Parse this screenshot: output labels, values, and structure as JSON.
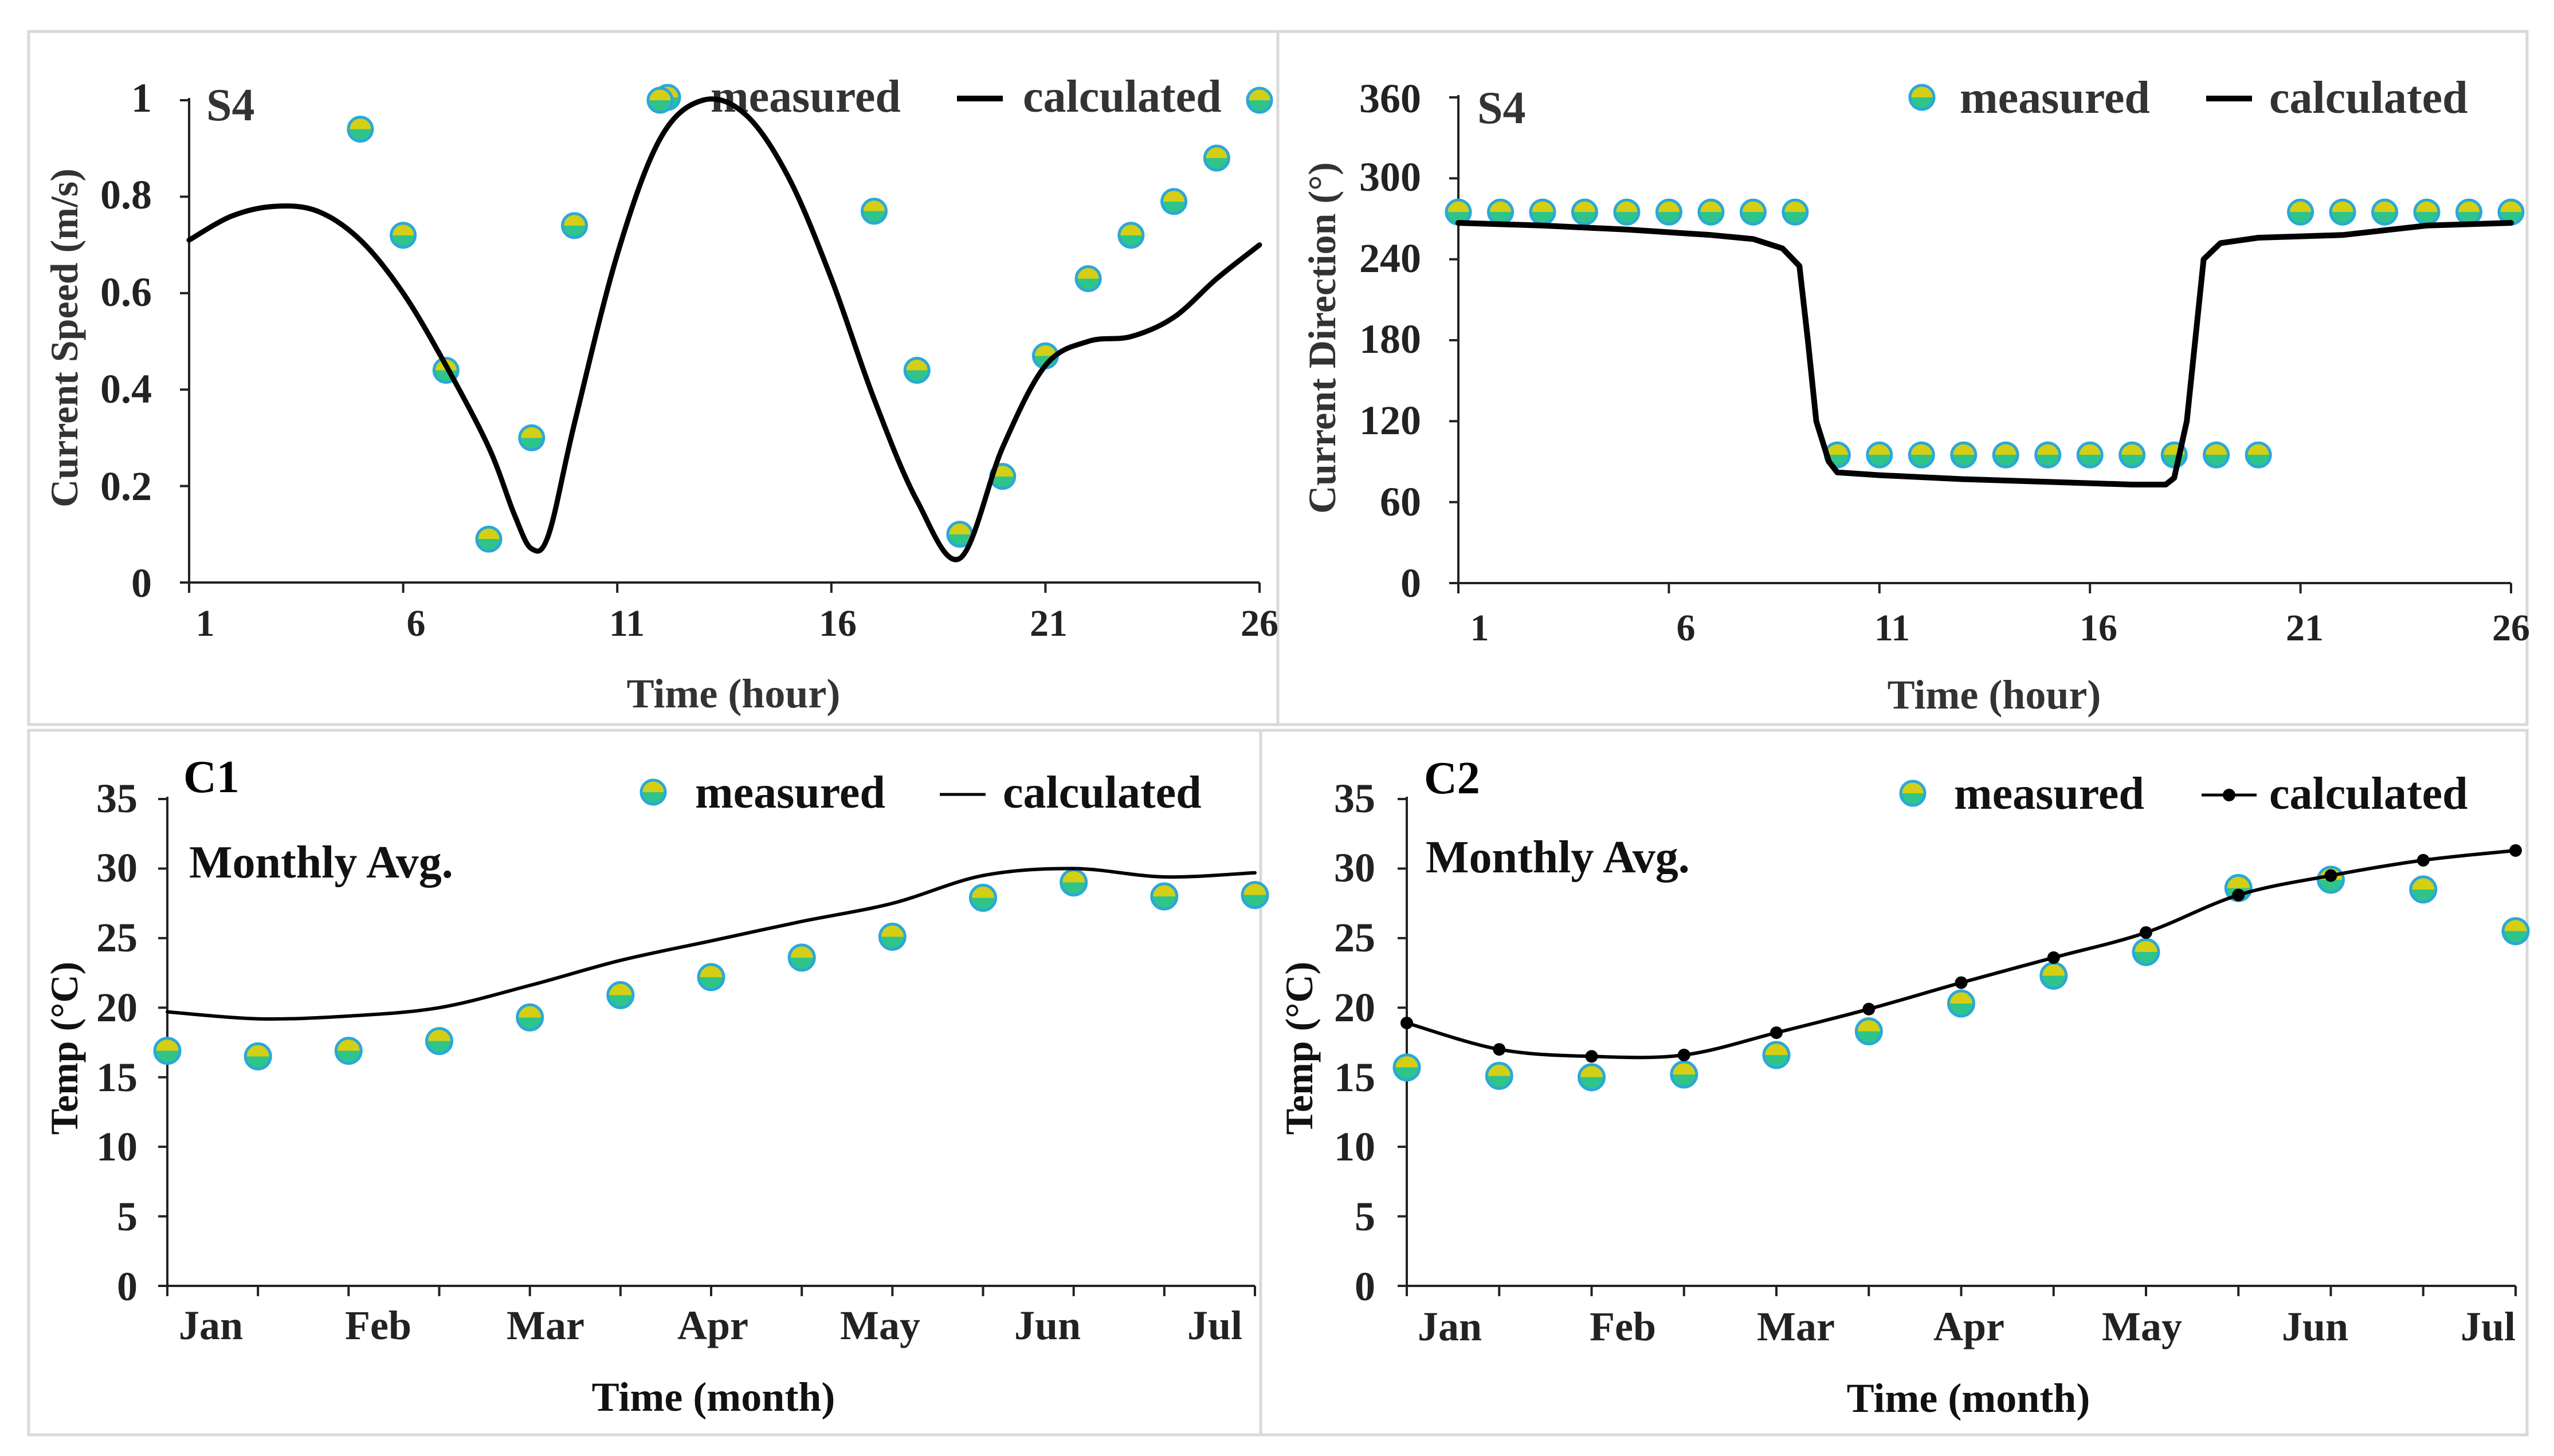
{
  "chart_data": [
    {
      "id": "p1",
      "type": "line",
      "title": "S4",
      "xlabel": "Time (hour)",
      "ylabel": "Current Speed (m/s)",
      "xlim": [
        1,
        26
      ],
      "ylim": [
        0,
        1
      ],
      "xticks": [
        "1",
        "6",
        "11",
        "16",
        "21",
        "26"
      ],
      "yticks": [
        "0",
        "0.2",
        "0.4",
        "0.6",
        "0.8",
        "1"
      ],
      "legend": {
        "measured": "measured",
        "calculated": "calculated"
      },
      "series": [
        {
          "name": "measured",
          "kind": "points",
          "x": [
            5,
            6,
            7,
            8,
            9,
            10,
            12,
            17,
            18,
            19,
            20,
            21,
            22,
            23,
            24,
            25,
            26
          ],
          "y": [
            0.94,
            0.72,
            0.44,
            0.09,
            0.3,
            0.74,
            1.0,
            0.77,
            0.44,
            0.1,
            0.22,
            0.47,
            0.63,
            0.72,
            0.79,
            0.88,
            1.0
          ]
        },
        {
          "name": "calculated",
          "kind": "smooth-line",
          "x": [
            1,
            2,
            3,
            4,
            5,
            6,
            7,
            8,
            8.6,
            9,
            9.4,
            10,
            11,
            12,
            13,
            14,
            15,
            16,
            17,
            18,
            19,
            20,
            21,
            22,
            23,
            24,
            25,
            26
          ],
          "y": [
            0.71,
            0.76,
            0.78,
            0.77,
            0.71,
            0.6,
            0.45,
            0.28,
            0.14,
            0.07,
            0.1,
            0.33,
            0.68,
            0.92,
            1.0,
            0.97,
            0.84,
            0.63,
            0.38,
            0.17,
            0.05,
            0.28,
            0.45,
            0.5,
            0.51,
            0.55,
            0.63,
            0.7
          ]
        }
      ]
    },
    {
      "id": "p2",
      "type": "line",
      "title": "S4",
      "xlabel": "Time (hour)",
      "ylabel": "Current Direction (°)",
      "xlim": [
        1,
        26
      ],
      "ylim": [
        0,
        360
      ],
      "xticks": [
        "1",
        "11",
        "16",
        "21",
        "26",
        "6"
      ],
      "xtick_values": [
        1,
        11,
        16,
        21,
        26,
        6
      ],
      "yticks": [
        "0",
        "60",
        "120",
        "180",
        "240",
        "300",
        "360"
      ],
      "legend": {
        "measured": "measured",
        "calculated": "calculated"
      },
      "series": [
        {
          "name": "measured",
          "kind": "points",
          "x": [
            1,
            2,
            3,
            4,
            5,
            6,
            7,
            8,
            9,
            10,
            11,
            12,
            13,
            14,
            15,
            16,
            17,
            18,
            19,
            20,
            21,
            22,
            23,
            24,
            25,
            26
          ],
          "y": [
            275,
            275,
            275,
            275,
            275,
            275,
            275,
            275,
            275,
            95,
            95,
            95,
            95,
            95,
            95,
            95,
            95,
            95,
            95,
            95,
            275,
            275,
            275,
            275,
            275,
            275
          ]
        },
        {
          "name": "calculated",
          "kind": "line",
          "x": [
            1,
            3,
            5,
            7,
            8,
            8.7,
            9.1,
            9.3,
            9.5,
            9.8,
            10,
            11,
            13,
            15,
            17,
            17.8,
            18,
            18.3,
            18.5,
            18.7,
            19.1,
            20,
            22,
            24,
            26
          ],
          "y": [
            267,
            265,
            262,
            258,
            255,
            248,
            235,
            180,
            120,
            90,
            82,
            80,
            77,
            75,
            73,
            73,
            78,
            120,
            180,
            240,
            252,
            256,
            258,
            265,
            267
          ]
        }
      ]
    },
    {
      "id": "p3",
      "type": "line",
      "title": "C1",
      "annotation": "Monthly Avg.",
      "xlabel": "Time (month)",
      "ylabel": "Temp (°C)",
      "categories": [
        "Jan",
        "Feb",
        "Mar",
        "Apr",
        "May",
        "Jun",
        "Jul"
      ],
      "xlim": [
        1,
        13
      ],
      "ylim": [
        0,
        35
      ],
      "yticks": [
        "0",
        "5",
        "10",
        "15",
        "20",
        "25",
        "30",
        "35"
      ],
      "legend": {
        "measured": "measured",
        "calculated": "calculated"
      },
      "series": [
        {
          "name": "measured",
          "kind": "points",
          "x": [
            1,
            2,
            3,
            4,
            5,
            6,
            7,
            8,
            9,
            10,
            11,
            12,
            13
          ],
          "y": [
            16.9,
            16.5,
            16.9,
            17.6,
            19.3,
            20.9,
            22.2,
            23.6,
            25.1,
            27.9,
            29.0,
            28.0,
            28.1
          ]
        },
        {
          "name": "calculated",
          "kind": "smooth-line",
          "x": [
            1,
            2,
            3,
            4,
            5,
            6,
            7,
            8,
            9,
            10,
            11,
            12,
            13
          ],
          "y": [
            19.7,
            19.2,
            19.4,
            20.0,
            21.6,
            23.4,
            24.8,
            26.2,
            27.5,
            29.5,
            30.0,
            29.4,
            29.7
          ]
        }
      ]
    },
    {
      "id": "p4",
      "type": "line",
      "title": "C2",
      "annotation": "Monthly Avg.",
      "xlabel": "Time (month)",
      "ylabel": "Temp (°C)",
      "categories": [
        "Jan",
        "Feb",
        "Mar",
        "Apr",
        "May",
        "Jun",
        "Jul"
      ],
      "xlim": [
        1,
        13
      ],
      "ylim": [
        0,
        35
      ],
      "yticks": [
        "0",
        "5",
        "10",
        "15",
        "20",
        "25",
        "30",
        "35"
      ],
      "legend": {
        "measured": "measured",
        "calculated": "calculated"
      },
      "series": [
        {
          "name": "measured",
          "kind": "points",
          "x": [
            1,
            2,
            3,
            4,
            5,
            6,
            7,
            8,
            9,
            10,
            11,
            12,
            13
          ],
          "y": [
            15.7,
            15.1,
            15.0,
            15.2,
            16.6,
            18.3,
            20.3,
            22.3,
            24.0,
            28.6,
            29.2,
            28.5,
            25.5
          ]
        },
        {
          "name": "calculated",
          "kind": "marker-line",
          "x": [
            1,
            2,
            3,
            4,
            5,
            6,
            7,
            8,
            9,
            10,
            11,
            12,
            13
          ],
          "y": [
            18.9,
            17.0,
            16.5,
            16.6,
            18.2,
            19.9,
            21.8,
            23.6,
            25.4,
            28.1,
            29.5,
            30.6,
            31.3
          ]
        }
      ]
    }
  ],
  "colors": {
    "marker_top": "#d4cf14",
    "marker_bottom": "#2fc48a",
    "marker_edge": "#2aa8d8",
    "line": "#000000",
    "axis": "#222222",
    "frame": "#d9d9d9"
  }
}
